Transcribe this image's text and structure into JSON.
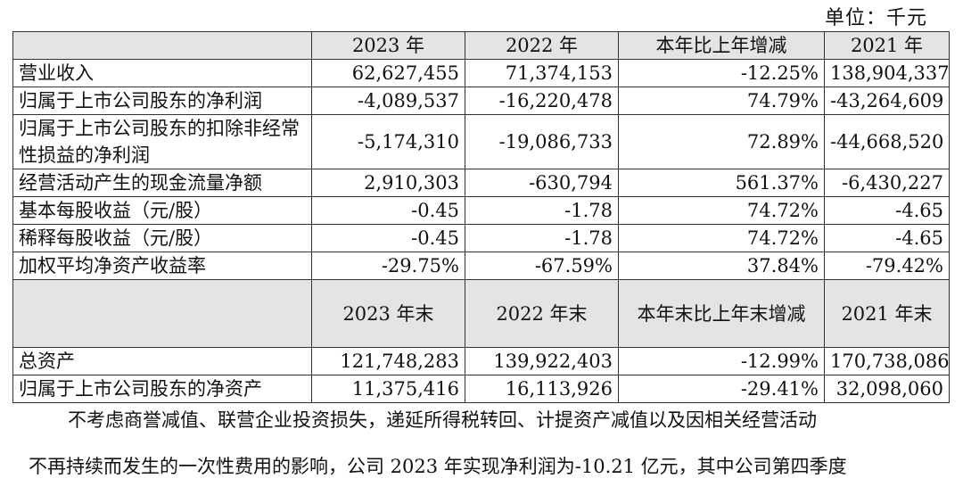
{
  "unit_label": "单位：千元",
  "header1": [
    "2023 年",
    "2022 年",
    "本年比上年增减",
    "2021 年"
  ],
  "rows1": [
    {
      "label": "营业收入",
      "values": [
        "62,627,455",
        "71,374,153",
        "-12.25%",
        "138,904,337"
      ]
    },
    {
      "label": "归属于上市公司股东的净利润",
      "values": [
        "-4,089,537",
        "-16,220,478",
        "74.79%",
        "-43,264,609"
      ]
    },
    {
      "label": "归属于上市公司股东的扣除非经常性损益的净利润",
      "values": [
        "-5,174,310",
        "-19,086,733",
        "72.89%",
        "-44,668,520"
      ]
    },
    {
      "label": "经营活动产生的现金流量净额",
      "values": [
        "2,910,303",
        "-630,794",
        "561.37%",
        "-6,430,227"
      ]
    },
    {
      "label": "基本每股收益（元/股）",
      "values": [
        "-0.45",
        "-1.78",
        "74.72%",
        "-4.65"
      ]
    },
    {
      "label": "稀释每股收益（元/股）",
      "values": [
        "-0.45",
        "-1.78",
        "74.72%",
        "-4.65"
      ]
    },
    {
      "label": "加权平均净资产收益率",
      "values": [
        "-29.75%",
        "-67.59%",
        "37.84%",
        "-79.42%"
      ]
    }
  ],
  "header2": [
    "2023 年末",
    "2022 年末",
    "本年末比上年末增减",
    "2021 年末"
  ],
  "rows2": [
    {
      "label": "总资产",
      "values": [
        "121,748,283",
        "139,922,403",
        "-12.99%",
        "170,738,086"
      ]
    },
    {
      "label": "归属于上市公司股东的净资产",
      "values": [
        "11,375,416",
        "16,113,926",
        "-29.41%",
        "32,098,060"
      ]
    }
  ],
  "paragraph": {
    "line1": "不考虑商誉减值、联营企业投资损失，递延所得税转回、计提资产减值以及因相关经营活动",
    "line2": "不再持续而发生的一次性费用的影响，公司 2023 年实现净利润为-10.21 亿元，其中公司第四季度"
  }
}
